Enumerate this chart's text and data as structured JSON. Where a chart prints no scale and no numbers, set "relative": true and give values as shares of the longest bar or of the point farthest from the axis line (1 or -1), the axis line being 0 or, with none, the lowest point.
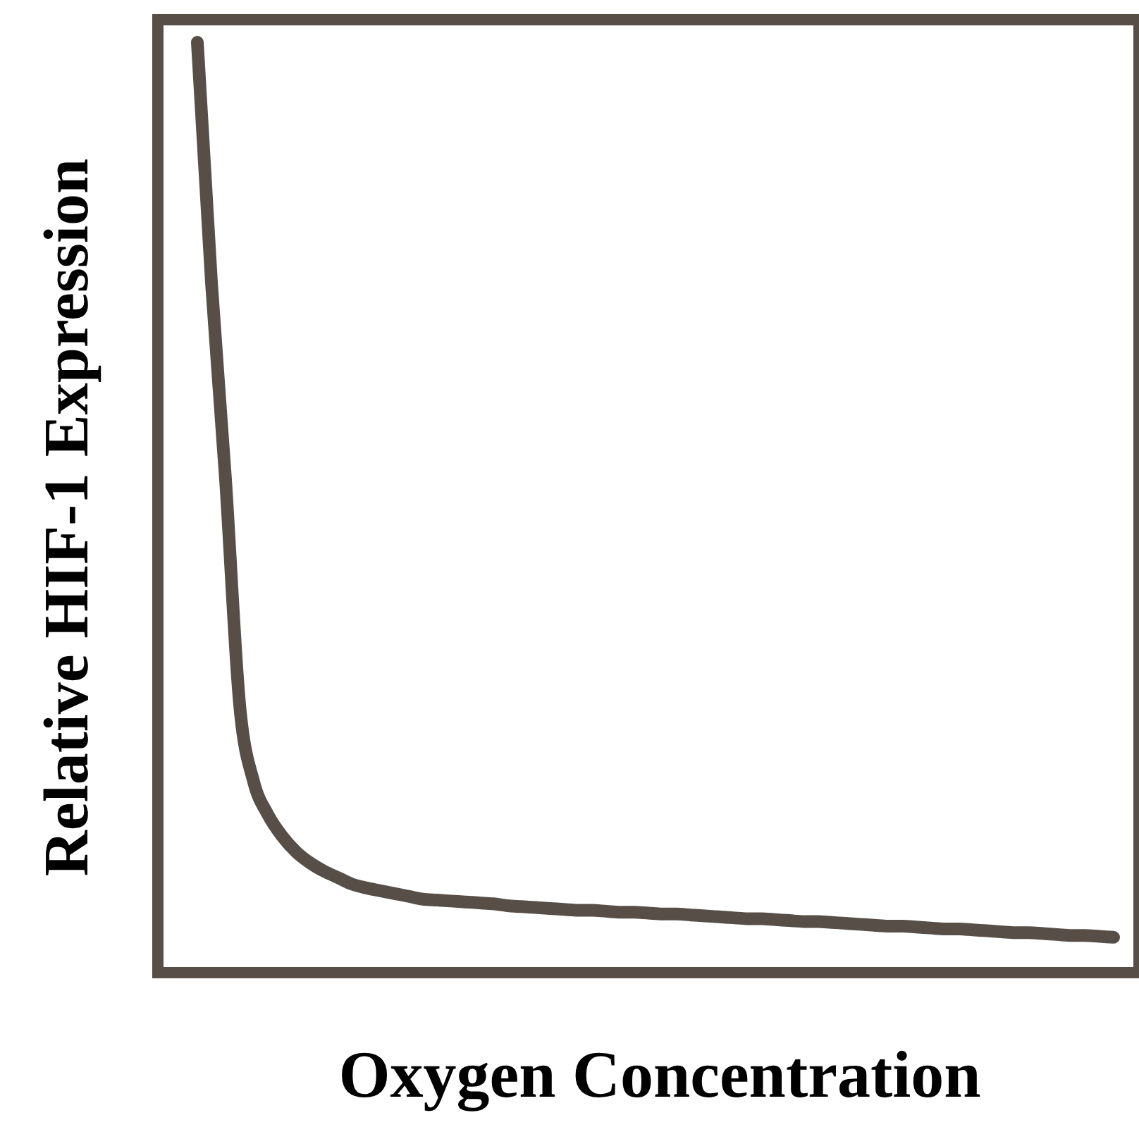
{
  "chart_data": {
    "type": "line",
    "relative": true,
    "xlabel": "Oxygen Concentration",
    "ylabel": "Relative HIF-1 Expression",
    "line_style": "solid",
    "categories": [
      null,
      null,
      null,
      null,
      null,
      null,
      null,
      null,
      null,
      null,
      null,
      null,
      null,
      null,
      null,
      null,
      null,
      null,
      null,
      null,
      null,
      null,
      null,
      null,
      null,
      null,
      null,
      null,
      null,
      null,
      null,
      null,
      null,
      null,
      null,
      null,
      null,
      null,
      null,
      null,
      null,
      null,
      null,
      null,
      null,
      null,
      null,
      null,
      null,
      null,
      null,
      null,
      null,
      null,
      null,
      null,
      null,
      null,
      null,
      null,
      null,
      null,
      null,
      null,
      null,
      null
    ],
    "series": [
      {
        "color": "#574f47",
        "values": [
          1.0,
          0.742,
          0.53,
          0.288,
          0.205,
          0.17,
          0.147,
          0.13,
          0.118,
          0.109,
          0.102,
          0.095,
          0.091,
          0.088,
          0.085,
          0.082,
          0.079,
          0.078,
          0.077,
          0.076,
          0.075,
          0.074,
          0.072,
          0.071,
          0.07,
          0.069,
          0.068,
          0.067,
          0.067,
          0.066,
          0.065,
          0.065,
          0.064,
          0.063,
          0.063,
          0.062,
          0.061,
          0.06,
          0.059,
          0.058,
          0.058,
          0.057,
          0.056,
          0.055,
          0.055,
          0.054,
          0.053,
          0.052,
          0.051,
          0.05,
          0.05,
          0.049,
          0.048,
          0.047,
          0.047,
          0.046,
          0.045,
          0.044,
          0.043,
          0.043,
          0.042,
          0.041,
          0.04,
          0.04,
          0.039,
          0.038
        ]
      }
    ]
  }
}
